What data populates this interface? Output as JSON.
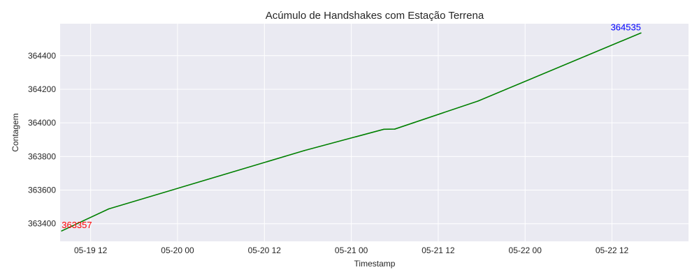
{
  "chart_data": {
    "type": "line",
    "title": "Acúmulo de Handshakes com Estação Terrena",
    "xlabel": "Timestamp",
    "ylabel": "Contagem",
    "grid": true,
    "legend": "none",
    "colors": {
      "background": "#eaeaf2",
      "grid": "#ffffff",
      "line": "#008000",
      "annotation_start": "#ff0000",
      "annotation_end": "#0000ff"
    },
    "xlim": [
      "2024-05-19T07:47",
      "2024-05-22T22:34"
    ],
    "ylim": [
      363295,
      364590
    ],
    "x_ticks": [
      {
        "value": "2024-05-19T12:00",
        "label": "05-19 12"
      },
      {
        "value": "2024-05-20T00:00",
        "label": "05-20 00"
      },
      {
        "value": "2024-05-20T12:00",
        "label": "05-20 12"
      },
      {
        "value": "2024-05-21T00:00",
        "label": "05-21 00"
      },
      {
        "value": "2024-05-21T12:00",
        "label": "05-21 12"
      },
      {
        "value": "2024-05-22T00:00",
        "label": "05-22 00"
      },
      {
        "value": "2024-05-22T12:00",
        "label": "05-22 12"
      }
    ],
    "y_ticks": [
      {
        "value": 363400,
        "label": "363400"
      },
      {
        "value": 363600,
        "label": "363600"
      },
      {
        "value": 363800,
        "label": "363800"
      },
      {
        "value": 364000,
        "label": "364000"
      },
      {
        "value": 364200,
        "label": "364200"
      },
      {
        "value": 364400,
        "label": "364400"
      }
    ],
    "series": [
      {
        "points": [
          {
            "x": "2024-05-19T08:00",
            "y": 363357
          },
          {
            "x": "2024-05-19T14:30",
            "y": 363488
          },
          {
            "x": "2024-05-20T17:30",
            "y": 363835
          },
          {
            "x": "2024-05-21T04:30",
            "y": 363962
          },
          {
            "x": "2024-05-21T06:00",
            "y": 363963
          },
          {
            "x": "2024-05-21T17:30",
            "y": 364130
          },
          {
            "x": "2024-05-22T16:00",
            "y": 364535
          }
        ]
      }
    ],
    "annotations": [
      {
        "text": "363357",
        "x": "2024-05-19T08:00",
        "y": 363357,
        "color": "#ff0000"
      },
      {
        "text": "364535",
        "x": "2024-05-22T16:00",
        "y": 364535,
        "color": "#0000ff"
      }
    ]
  }
}
